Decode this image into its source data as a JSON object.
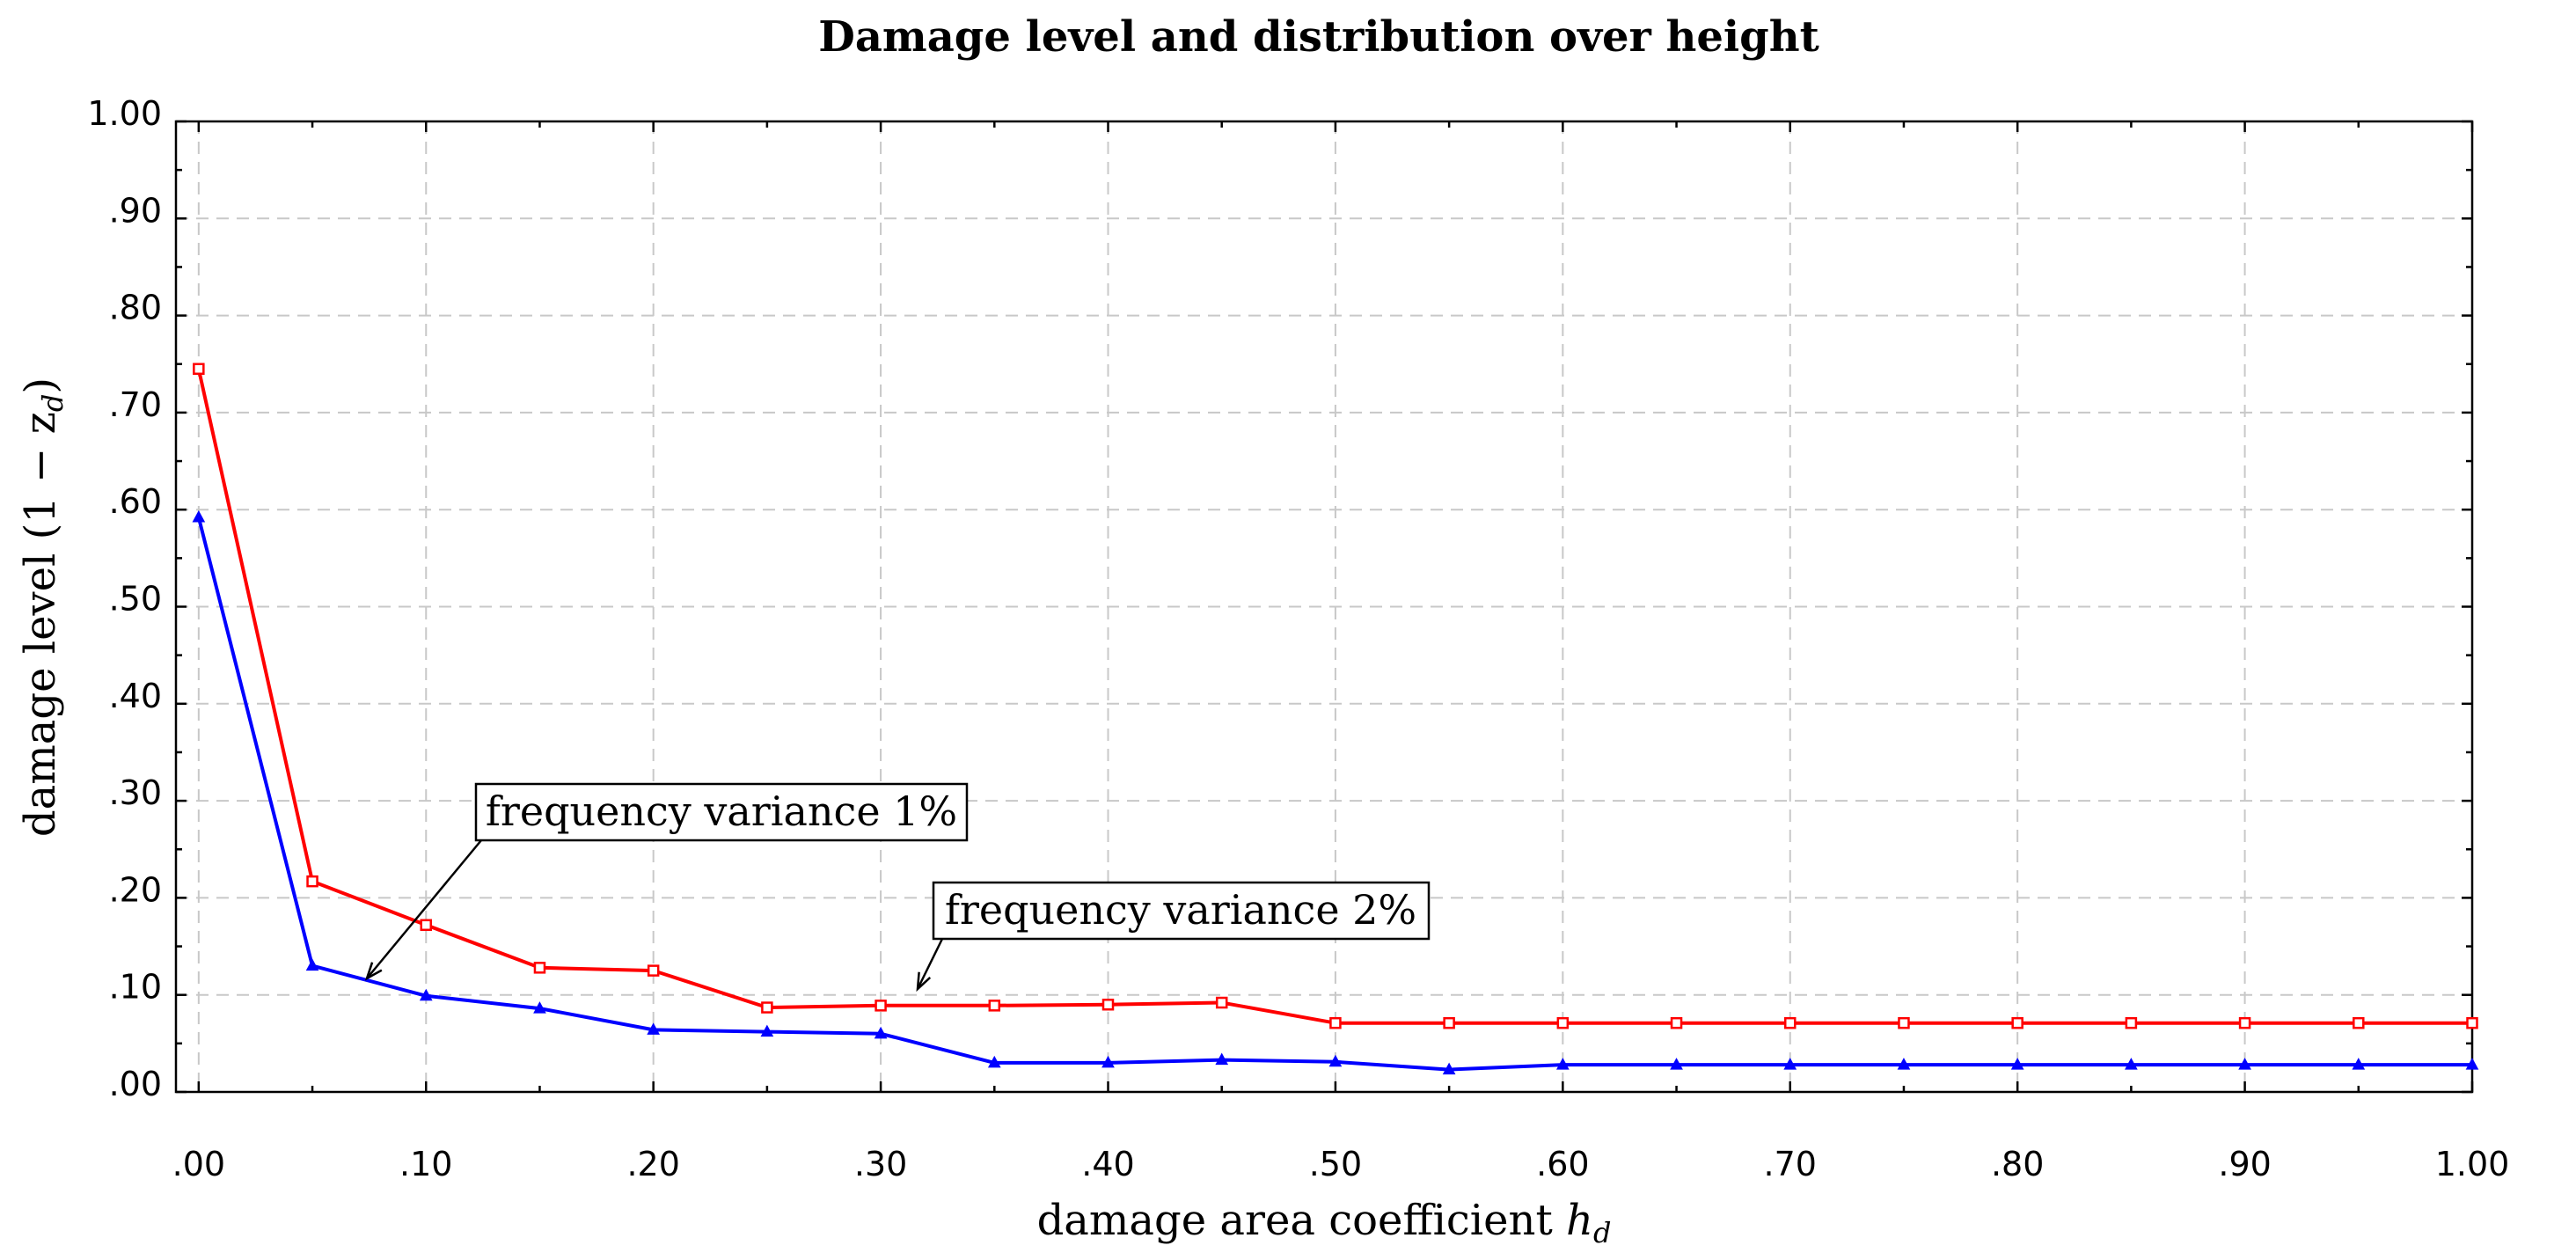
{
  "chart_data": {
    "type": "line",
    "title": "Damage level and distribution over height",
    "xlabel": "damage area coefficient",
    "xlabel_symbol": "h",
    "xlabel_subscript": "d",
    "ylabel_prefix": "damage level (1 − z",
    "ylabel_subscript": "d",
    "ylabel_suffix": ")",
    "xlim": [
      -0.01,
      1.0
    ],
    "ylim": [
      0,
      1.0
    ],
    "xticks": [
      0,
      0.1,
      0.2,
      0.3,
      0.4,
      0.5,
      0.6,
      0.7,
      0.8,
      0.9,
      1.0
    ],
    "xtick_labels": [
      ".00",
      ".10",
      ".20",
      ".30",
      ".40",
      ".50",
      ".60",
      ".70",
      ".80",
      ".90",
      "1.00"
    ],
    "yticks": [
      0,
      0.1,
      0.2,
      0.3,
      0.4,
      0.5,
      0.6,
      0.7,
      0.8,
      0.9,
      1.0
    ],
    "ytick_labels": [
      ".00",
      ".10",
      ".20",
      ".30",
      ".40",
      ".50",
      ".60",
      ".70",
      ".80",
      ".90",
      "1.00"
    ],
    "grid": true,
    "x": [
      0,
      0.05,
      0.1,
      0.15,
      0.2,
      0.25,
      0.3,
      0.35,
      0.4,
      0.45,
      0.5,
      0.55,
      0.6,
      0.65,
      0.7,
      0.75,
      0.8,
      0.85,
      0.9,
      0.95,
      1.0
    ],
    "series": [
      {
        "name": "frequency variance 2%",
        "color": "#ff0000",
        "marker": "square",
        "values": [
          0.745,
          0.217,
          0.172,
          0.128,
          0.125,
          0.087,
          0.089,
          0.089,
          0.09,
          0.092,
          0.071,
          0.071,
          0.071,
          0.071,
          0.071,
          0.071,
          0.071,
          0.071,
          0.071,
          0.071,
          0.071
        ]
      },
      {
        "name": "frequency variance 1%",
        "color": "#0000ff",
        "marker": "triangle",
        "values": [
          0.592,
          0.13,
          0.099,
          0.086,
          0.064,
          0.062,
          0.06,
          0.03,
          0.03,
          0.033,
          0.031,
          0.023,
          0.028,
          0.028,
          0.028,
          0.028,
          0.028,
          0.028,
          0.028,
          0.028,
          0.028
        ]
      }
    ],
    "annotations": [
      {
        "text": "frequency variance 1%",
        "x": 0.083,
        "y": 0.12
      },
      {
        "text": "frequency variance 2%",
        "x": 0.31,
        "y": 0.107
      }
    ]
  }
}
